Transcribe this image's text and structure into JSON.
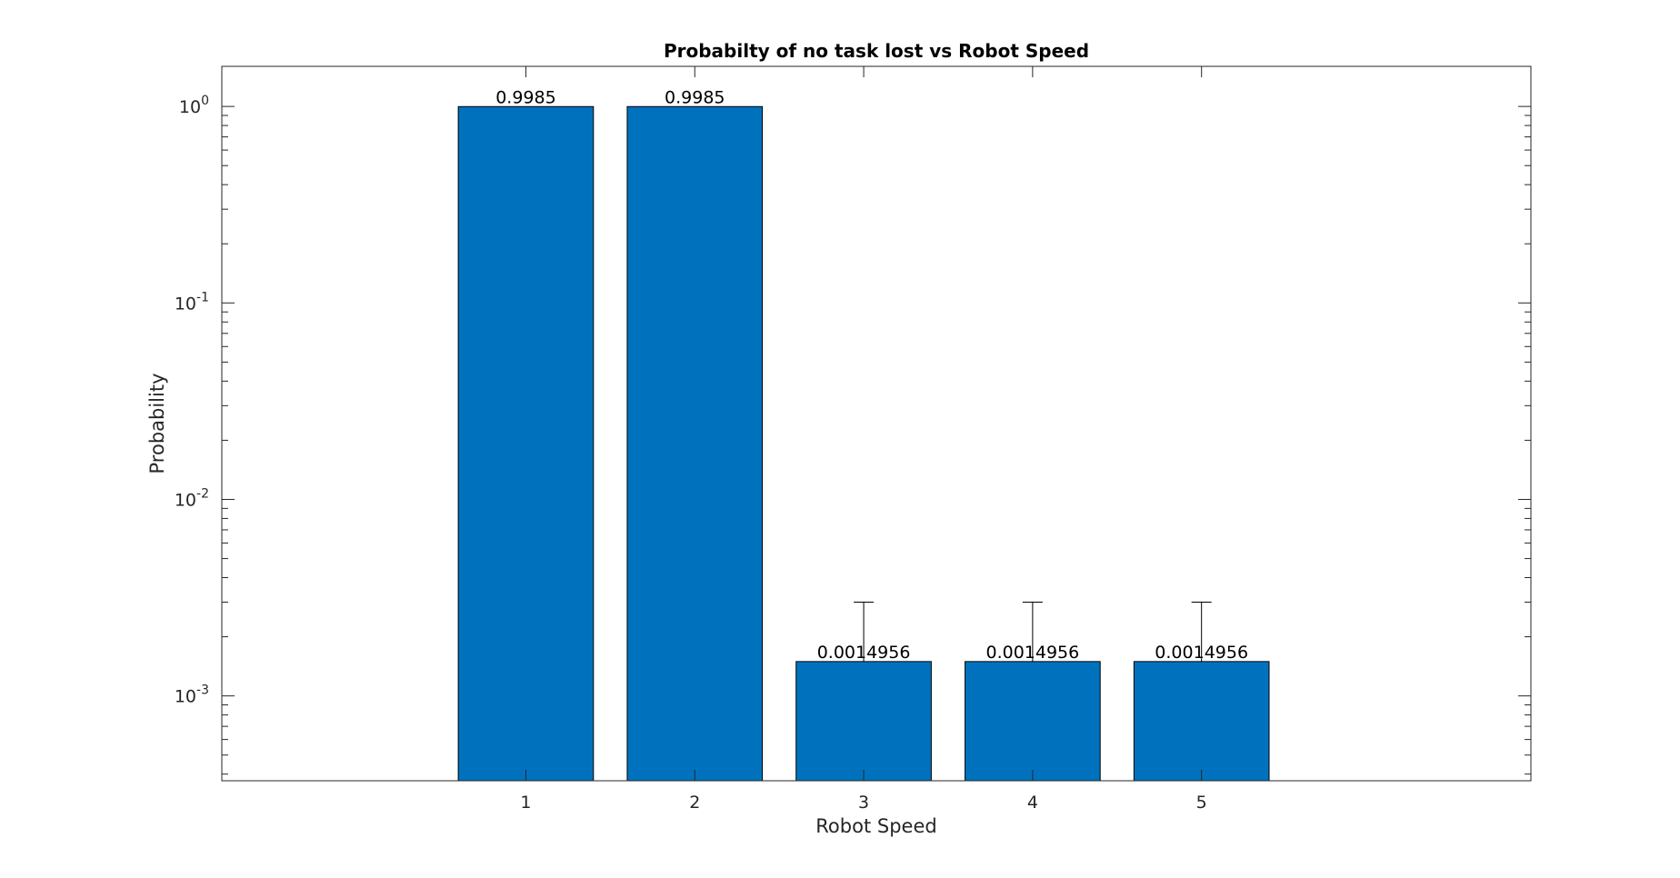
{
  "chart_data": {
    "type": "bar",
    "title": "Probabilty of no task lost vs Robot Speed",
    "xlabel": "Robot Speed",
    "ylabel": "Probability",
    "y_scale": "log",
    "categories": [
      "1",
      "2",
      "3",
      "4",
      "5"
    ],
    "x_values": [
      1,
      2,
      3,
      4,
      5
    ],
    "xlim": [
      -0.8,
      6.95
    ],
    "ylim": [
      0.00037,
      1.6
    ],
    "values": [
      0.9985,
      0.9985,
      0.0014956,
      0.0014956,
      0.0014956
    ],
    "data_labels": [
      "0.9985",
      "0.9985",
      "0.0014956",
      "0.0014956",
      "0.0014956"
    ],
    "error_upper": [
      null,
      null,
      0.003,
      0.003,
      0.003
    ],
    "y_ticks": [
      {
        "base": "10",
        "exp": "0",
        "value": 1
      },
      {
        "base": "10",
        "exp": "-1",
        "value": 0.1
      },
      {
        "base": "10",
        "exp": "-2",
        "value": 0.01
      },
      {
        "base": "10",
        "exp": "-3",
        "value": 0.001
      }
    ],
    "grid": false,
    "legend": "none",
    "bar_color": "#0072BD",
    "axis_color": "#262626"
  }
}
